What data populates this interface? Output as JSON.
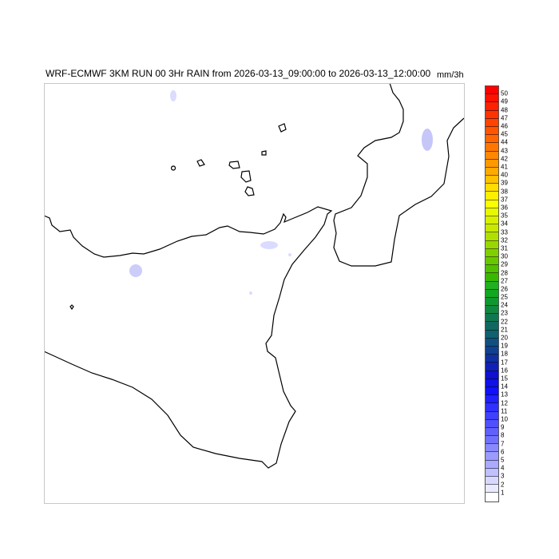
{
  "header": {
    "title": "WRF-ECMWF 3KM RUN 00 3Hr RAIN from 2026-03-13_09:00:00 to 2026-03-13_12:00:00",
    "units": "mm/3h"
  },
  "colorbar": {
    "labels": [
      "50",
      "49",
      "48",
      "47",
      "46",
      "45",
      "44",
      "43",
      "42",
      "41",
      "40",
      "39",
      "38",
      "37",
      "36",
      "35",
      "34",
      "33",
      "32",
      "31",
      "30",
      "29",
      "28",
      "27",
      "26",
      "25",
      "24",
      "23",
      "22",
      "21",
      "20",
      "19",
      "18",
      "17",
      "16",
      "15",
      "14",
      "13",
      "12",
      "11",
      "10",
      "9",
      "8",
      "7",
      "6",
      "5",
      "4",
      "3",
      "2",
      "1"
    ],
    "colors": [
      "#ff0000",
      "#ff1100",
      "#ff2200",
      "#ff3300",
      "#ff4400",
      "#ff5500",
      "#ff6600",
      "#ff7700",
      "#ff8800",
      "#ff9900",
      "#ffaa00",
      "#ffc000",
      "#ffdd00",
      "#ffee00",
      "#f8ff00",
      "#e8f800",
      "#d8f000",
      "#c8e800",
      "#b0e000",
      "#98d800",
      "#80d000",
      "#68c800",
      "#50c000",
      "#38b800",
      "#20b020",
      "#10a820",
      "#109830",
      "#108840",
      "#107850",
      "#106860",
      "#106070",
      "#105080",
      "#104090",
      "#1030a0",
      "#1020b8",
      "#1010d0",
      "#1010e8",
      "#1010ff",
      "#2020ff",
      "#3030ff",
      "#4040ff",
      "#5050ff",
      "#6060ff",
      "#7070ff",
      "#8888ff",
      "#9a9aff",
      "#aaaaff",
      "#c0c0ff",
      "#d8d8ff",
      "#eaeaff",
      "#ffffff"
    ]
  },
  "map": {
    "border_color": "#c8c8c8",
    "rain_color": "#c8c8ff"
  }
}
